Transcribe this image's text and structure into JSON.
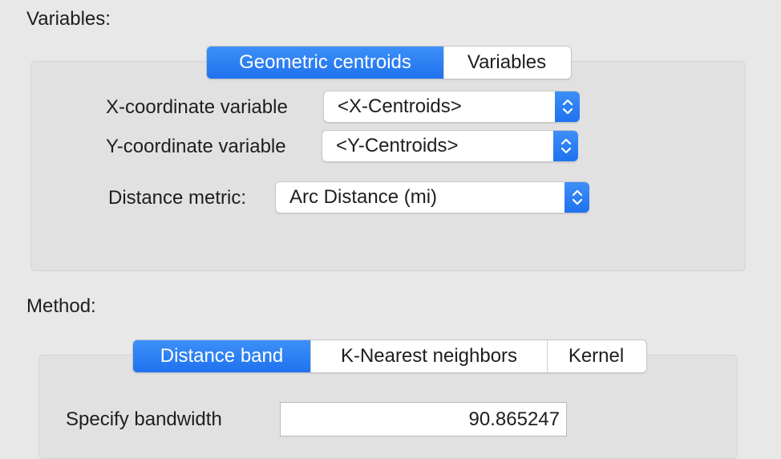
{
  "variables": {
    "label": "Variables:",
    "tabs": [
      {
        "label": "Geometric centroids",
        "active": true
      },
      {
        "label": "Variables",
        "active": false
      }
    ],
    "x_coord": {
      "label": "X-coordinate variable",
      "value": "<X-Centroids>"
    },
    "y_coord": {
      "label": "Y-coordinate variable",
      "value": "<Y-Centroids>"
    },
    "distance_metric": {
      "label": "Distance metric:",
      "value": "Arc Distance (mi)"
    }
  },
  "method": {
    "label": "Method:",
    "tabs": [
      {
        "label": "Distance band",
        "active": true
      },
      {
        "label": "K-Nearest neighbors",
        "active": false
      },
      {
        "label": "Kernel",
        "active": false
      }
    ],
    "bandwidth": {
      "label": "Specify bandwidth",
      "value": "90.865247"
    }
  },
  "colors": {
    "accent": "#2b7ff4",
    "panel": "#e1e1e1",
    "background": "#e8e8e8"
  }
}
